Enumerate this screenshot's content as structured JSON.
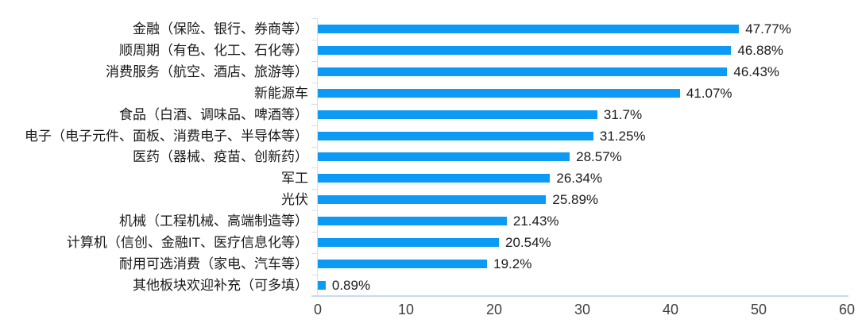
{
  "chart_data": {
    "type": "bar",
    "orientation": "horizontal",
    "title": "",
    "xlabel": "",
    "ylabel": "",
    "categories": [
      "金融（保险、银行、券商等）",
      "顺周期（有色、化工、石化等）",
      "消费服务（航空、酒店、旅游等）",
      "新能源车",
      "食品（白酒、调味品、啤酒等）",
      "电子（电子元件、面板、消费电子、半导体等）",
      "医药（器械、疫苗、创新药）",
      "军工",
      "光伏",
      "机械（工程机械、高端制造等）",
      "计算机（信创、金融IT、医疗信息化等）",
      "耐用可选消费（家电、汽车等）",
      "其他板块欢迎补充（可多填）"
    ],
    "values": [
      47.77,
      46.88,
      46.43,
      41.07,
      31.7,
      31.25,
      28.57,
      26.34,
      25.89,
      21.43,
      20.54,
      19.2,
      0.89
    ],
    "value_labels": [
      "47.77%",
      "46.88%",
      "46.43%",
      "41.07%",
      "31.7%",
      "31.25%",
      "28.57%",
      "26.34%",
      "25.89%",
      "21.43%",
      "20.54%",
      "19.2%",
      "0.89%"
    ],
    "xlim": [
      0,
      60
    ],
    "x_ticks": [
      0,
      10,
      20,
      30,
      40,
      50,
      60
    ],
    "x_tick_labels": [
      "0",
      "10",
      "20",
      "30",
      "40",
      "50",
      "60"
    ],
    "grid": false,
    "legend": false,
    "colors": {
      "bar": "#0c9af5",
      "axis_line": "#d8dde6",
      "baseline": "#c9daec",
      "label_text": "#1a1a1a",
      "tick_text": "#404040",
      "background": "#ffffff"
    }
  }
}
